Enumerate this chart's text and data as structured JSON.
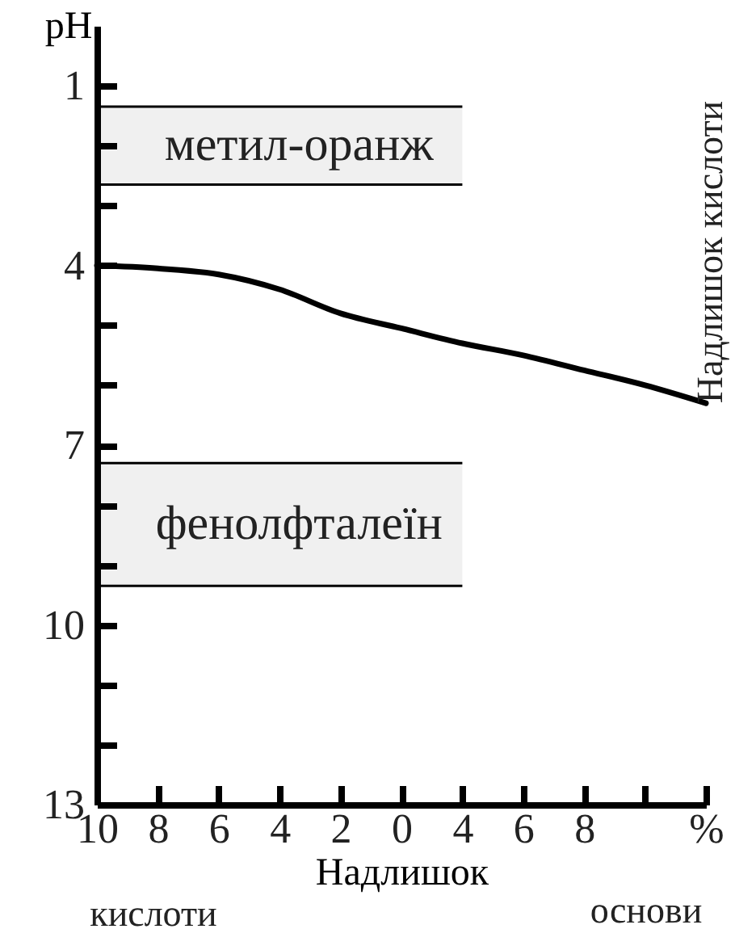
{
  "chart_data": {
    "type": "line",
    "xlabel": "Надлишок",
    "ylabel": "pH",
    "categories": [
      "10",
      "8",
      "6",
      "4",
      "2",
      "0",
      "4",
      "6",
      "8",
      null,
      "%"
    ],
    "series": [
      {
        "color": "#000000",
        "values": [
          4.0,
          4.05,
          4.15,
          4.4,
          4.8,
          5.05,
          5.3,
          5.5,
          5.75,
          6.0,
          6.3
        ]
      }
    ],
    "ylim": [
      13,
      0
    ],
    "yticks": [
      {
        "value": 1,
        "label": "1"
      },
      {
        "value": 2,
        "label": null
      },
      {
        "value": 3,
        "label": null
      },
      {
        "value": 4,
        "label": "4"
      },
      {
        "value": 5,
        "label": null
      },
      {
        "value": 6,
        "label": null
      },
      {
        "value": 7,
        "label": "7"
      },
      {
        "value": 8,
        "label": null
      },
      {
        "value": 9,
        "label": null
      },
      {
        "value": 10,
        "label": "10"
      },
      {
        "value": 11,
        "label": null
      },
      {
        "value": 12,
        "label": null
      },
      {
        "value": 13,
        "label": "13"
      }
    ],
    "bands": [
      {
        "axis": "y",
        "from": 1.35,
        "to": 2.65,
        "label": "метил-оранж"
      },
      {
        "axis": "y",
        "from": 7.3,
        "to": 9.35,
        "label": "фенолфталеїн"
      }
    ],
    "annotations": [
      "кислоти",
      "основи",
      "Надлишок кислоти"
    ]
  }
}
